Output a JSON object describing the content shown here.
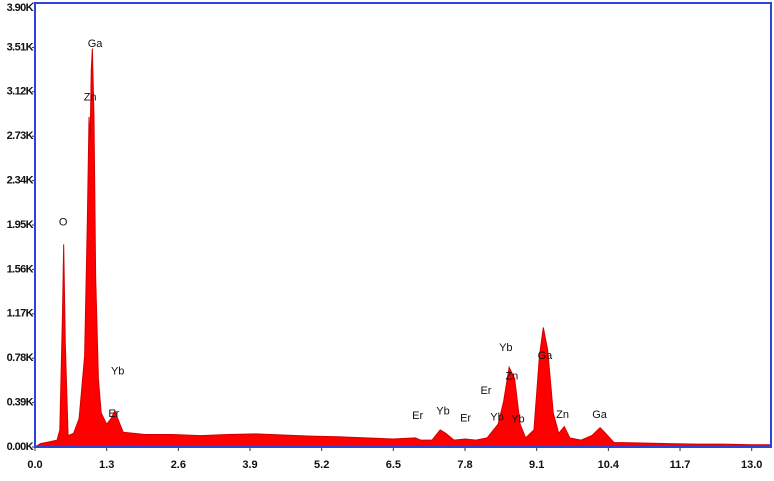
{
  "chart_data": {
    "type": "area",
    "color": "#ff0000",
    "frame_color": "#2a45d8",
    "xlim": [
      0,
      13.35
    ],
    "ylim": [
      0,
      3900
    ],
    "xticks": [
      {
        "value": 0,
        "label": "0.0"
      },
      1.3,
      2.6,
      3.9,
      5.2,
      6.5,
      7.8,
      9.1,
      10.4,
      11.7,
      {
        "value": 13,
        "label": "13.0"
      }
    ],
    "yticks": [
      {
        "value": 0,
        "label": "0.00K"
      },
      {
        "value": 390,
        "label": "0.39K"
      },
      {
        "value": 780,
        "label": "0.78K"
      },
      {
        "value": 1170,
        "label": "1.17K"
      },
      {
        "value": 1560,
        "label": "1.56K"
      },
      {
        "value": 1950,
        "label": "1.95K"
      },
      {
        "value": 2340,
        "label": "2.34K"
      },
      {
        "value": 2730,
        "label": "2.73K"
      },
      {
        "value": 3120,
        "label": "3.12K"
      },
      {
        "value": 3510,
        "label": "3.51K"
      },
      {
        "value": 3900,
        "label": "3.90K"
      }
    ],
    "x": [
      0.0,
      0.1,
      0.2,
      0.3,
      0.4,
      0.45,
      0.5,
      0.52,
      0.55,
      0.6,
      0.7,
      0.8,
      0.9,
      0.95,
      0.98,
      1.0,
      1.02,
      1.04,
      1.07,
      1.1,
      1.15,
      1.2,
      1.3,
      1.38,
      1.45,
      1.5,
      1.6,
      1.8,
      2.0,
      2.5,
      3.0,
      3.5,
      4.0,
      4.5,
      5.0,
      5.5,
      6.0,
      6.5,
      6.9,
      7.0,
      7.2,
      7.35,
      7.45,
      7.6,
      7.8,
      8.0,
      8.2,
      8.4,
      8.5,
      8.6,
      8.7,
      8.8,
      8.9,
      9.05,
      9.15,
      9.22,
      9.3,
      9.4,
      9.5,
      9.6,
      9.7,
      9.9,
      10.1,
      10.25,
      10.35,
      10.5,
      11.0,
      11.5,
      12.0,
      12.5,
      13.0,
      13.35
    ],
    "values": [
      0,
      30,
      40,
      50,
      60,
      150,
      1200,
      1780,
      900,
      100,
      120,
      250,
      800,
      2000,
      2900,
      2700,
      3300,
      3500,
      2900,
      1500,
      600,
      300,
      200,
      250,
      320,
      250,
      130,
      120,
      110,
      110,
      100,
      110,
      115,
      105,
      95,
      90,
      80,
      70,
      80,
      60,
      60,
      150,
      120,
      60,
      70,
      60,
      80,
      200,
      400,
      700,
      600,
      200,
      80,
      150,
      800,
      1050,
      850,
      300,
      120,
      180,
      80,
      60,
      100,
      170,
      120,
      40,
      35,
      30,
      25,
      25,
      20,
      20
    ],
    "annotations": [
      {
        "text": "O",
        "x": 0.51,
        "y": 1970
      },
      {
        "text": "Zn",
        "x": 1.0,
        "y": 3070
      },
      {
        "text": "Ga",
        "x": 1.09,
        "y": 3540
      },
      {
        "text": "Yb",
        "x": 1.5,
        "y": 663
      },
      {
        "text": "Er",
        "x": 1.43,
        "y": 290
      },
      {
        "text": "Er",
        "x": 6.94,
        "y": 270
      },
      {
        "text": "Yb",
        "x": 7.4,
        "y": 310
      },
      {
        "text": "Er",
        "x": 7.81,
        "y": 250
      },
      {
        "text": "Er",
        "x": 8.18,
        "y": 490
      },
      {
        "text": "Yb",
        "x": 8.54,
        "y": 870
      },
      {
        "text": "Zn",
        "x": 8.65,
        "y": 620
      },
      {
        "text": "Yb",
        "x": 8.38,
        "y": 260
      },
      {
        "text": "Yb",
        "x": 8.76,
        "y": 240
      },
      {
        "text": "Ga",
        "x": 9.25,
        "y": 800
      },
      {
        "text": "Zn",
        "x": 9.57,
        "y": 280
      },
      {
        "text": "Ga",
        "x": 10.24,
        "y": 280
      }
    ]
  }
}
